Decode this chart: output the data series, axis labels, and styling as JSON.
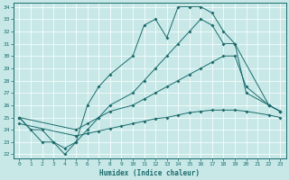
{
  "xlabel": "Humidex (Indice chaleur)",
  "bg_color": "#c8e8e8",
  "line_color": "#1a6b6b",
  "xlim": [
    -0.5,
    23.5
  ],
  "ylim": [
    21.7,
    34.3
  ],
  "yticks": [
    22,
    23,
    24,
    25,
    26,
    27,
    28,
    29,
    30,
    31,
    32,
    33,
    34
  ],
  "xticks": [
    0,
    1,
    2,
    3,
    4,
    5,
    6,
    7,
    8,
    9,
    10,
    11,
    12,
    13,
    14,
    15,
    16,
    17,
    18,
    19,
    20,
    21,
    22,
    23
  ],
  "curve1_x": [
    0,
    1,
    2,
    3,
    4,
    5,
    6,
    7,
    8,
    10,
    11,
    12,
    13,
    14,
    15,
    16,
    17,
    18,
    19,
    22,
    23
  ],
  "curve1_y": [
    25,
    24,
    24,
    23,
    22,
    23,
    26,
    27.5,
    28.5,
    30,
    32.5,
    33,
    31.5,
    34,
    34,
    34,
    33.5,
    32,
    31,
    26,
    25.5
  ],
  "curve2_x": [
    0,
    2,
    3,
    4,
    5,
    6,
    7,
    8,
    10,
    11,
    12,
    13,
    14,
    15,
    16,
    17,
    18,
    19,
    20,
    22,
    23
  ],
  "curve2_y": [
    25,
    23,
    23,
    22.5,
    23,
    24,
    25,
    26,
    27,
    28,
    29,
    30,
    31,
    32,
    33,
    32.5,
    31,
    31,
    27,
    26,
    25.5
  ],
  "curve3_x": [
    0,
    5,
    6,
    7,
    8,
    10,
    11,
    12,
    13,
    14,
    15,
    16,
    17,
    18,
    19,
    20,
    22,
    23
  ],
  "curve3_y": [
    25,
    24,
    24.5,
    25,
    25.5,
    26,
    26.5,
    27,
    27.5,
    28,
    28.5,
    29,
    29.5,
    30,
    30,
    27.5,
    26,
    25.5
  ],
  "curve4_x": [
    0,
    5,
    6,
    7,
    8,
    9,
    10,
    11,
    12,
    13,
    14,
    15,
    16,
    17,
    18,
    19,
    20,
    22,
    23
  ],
  "curve4_y": [
    24.5,
    23.5,
    23.7,
    23.9,
    24.1,
    24.3,
    24.5,
    24.7,
    24.9,
    25.0,
    25.2,
    25.4,
    25.5,
    25.6,
    25.6,
    25.6,
    25.5,
    25.2,
    25.0
  ]
}
